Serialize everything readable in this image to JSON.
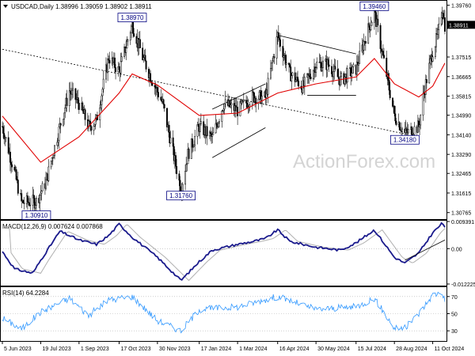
{
  "header": {
    "symbol_line": "USDCAD,Daily  1.38996 1.39059 1.38902 1.38911"
  },
  "watermark": "ActionForex.com",
  "colors": {
    "candle": "#000000",
    "ma": "#e00000",
    "macd_line": "#1a1a8c",
    "macd_signal": "#b0b0b0",
    "rsi_line": "#3399ff",
    "frame": "#000000",
    "grid_dot": "#b0b0b0",
    "label_bg": "#ffffff",
    "label_border": "#000080",
    "price_tag_bg": "#000000",
    "price_tag_text": "#ffffff"
  },
  "price_panel": {
    "y_ticks": [
      "1.39760",
      "1.38911",
      "1.37515",
      "1.36665",
      "1.35815",
      "1.34990",
      "1.34140",
      "1.33290",
      "1.32465",
      "1.31615",
      "1.30765"
    ],
    "current_price": "1.38911",
    "annotations": [
      "1.38970",
      "1.39460",
      "1.34180",
      "1.31760",
      "1.30910"
    ]
  },
  "macd_panel": {
    "label": "MACD(12,26,9) 0.007624 0.007868",
    "y_ticks": [
      "0.009391",
      "0.00",
      "-0.012225"
    ]
  },
  "rsi_panel": {
    "label": "RSI(14) 64.2284",
    "y_ticks": [
      "70",
      "50",
      "30"
    ]
  },
  "x_ticks": [
    "5 Jun 2023",
    "19 Jul 2023",
    "1 Sep 2023",
    "17 Oct 2023",
    "30 Nov 2023",
    "17 Jan 2024",
    "1 Mar 2024",
    "16 Apr 2024",
    "30 May 2024",
    "15 Jul 2024",
    "28 Aug 2024",
    "11 Oct 2024"
  ],
  "chart_data": {
    "type": "candlestick",
    "title": "USDCAD,Daily",
    "x_range": [
      "5 Jun 2023",
      "25 Oct 2024"
    ],
    "y_range": [
      1.3055,
      1.3985
    ],
    "ohlc_last": {
      "open": 1.38996,
      "high": 1.39059,
      "low": 1.38902,
      "close": 1.38911
    },
    "close_path": [
      {
        "x": "5 Jun 2023",
        "close": 1.345
      },
      {
        "x": "19 Jun 2023",
        "close": 1.325
      },
      {
        "x": "27 Jun 2023",
        "close": 1.312
      },
      {
        "x": "14 Jul 2023",
        "close": 1.3125
      },
      {
        "x": "25 Jul 2023",
        "close": 1.321
      },
      {
        "x": "10 Aug 2023",
        "close": 1.345
      },
      {
        "x": "21 Aug 2023",
        "close": 1.3605
      },
      {
        "x": "1 Sep 2023",
        "close": 1.355
      },
      {
        "x": "12 Sep 2023",
        "close": 1.345
      },
      {
        "x": "21 Sep 2023",
        "close": 1.3475
      },
      {
        "x": "5 Oct 2023",
        "close": 1.375
      },
      {
        "x": "17 Oct 2023",
        "close": 1.369
      },
      {
        "x": "1 Nov 2023",
        "close": 1.3895
      },
      {
        "x": "13 Nov 2023",
        "close": 1.375
      },
      {
        "x": "23 Nov 2023",
        "close": 1.366
      },
      {
        "x": "6 Dec 2023",
        "close": 1.355
      },
      {
        "x": "20 Dec 2023",
        "close": 1.33
      },
      {
        "x": "27 Dec 2023",
        "close": 1.3176
      },
      {
        "x": "4 Jan 2024",
        "close": 1.333
      },
      {
        "x": "17 Jan 2024",
        "close": 1.345
      },
      {
        "x": "1 Feb 2024",
        "close": 1.34
      },
      {
        "x": "14 Feb 2024",
        "close": 1.355
      },
      {
        "x": "1 Mar 2024",
        "close": 1.352
      },
      {
        "x": "19 Mar 2024",
        "close": 1.358
      },
      {
        "x": "2 Apr 2024",
        "close": 1.3575
      },
      {
        "x": "16 Apr 2024",
        "close": 1.3846
      },
      {
        "x": "30 Apr 2024",
        "close": 1.368
      },
      {
        "x": "15 May 2024",
        "close": 1.3621
      },
      {
        "x": "30 May 2024",
        "close": 1.372
      },
      {
        "x": "13 Jun 2024",
        "close": 1.372
      },
      {
        "x": "27 Jun 2024",
        "close": 1.365
      },
      {
        "x": "15 Jul 2024",
        "close": 1.37
      },
      {
        "x": "26 Jul 2024",
        "close": 1.384
      },
      {
        "x": "5 Aug 2024",
        "close": 1.3946
      },
      {
        "x": "15 Aug 2024",
        "close": 1.375
      },
      {
        "x": "28 Aug 2024",
        "close": 1.35
      },
      {
        "x": "9 Sep 2024",
        "close": 1.3418
      },
      {
        "x": "25 Sep 2024",
        "close": 1.345
      },
      {
        "x": "1 Oct 2024",
        "close": 1.36
      },
      {
        "x": "11 Oct 2024",
        "close": 1.378
      },
      {
        "x": "17 Oct 2024",
        "close": 1.3845
      },
      {
        "x": "22 Oct 2024",
        "close": 1.3965
      },
      {
        "x": "25 Oct 2024",
        "close": 1.3891
      }
    ],
    "moving_average_path": [
      {
        "x": "5 Jun 2023",
        "value": 1.3495
      },
      {
        "x": "19 Jul 2023",
        "value": 1.3295
      },
      {
        "x": "1 Sep 2023",
        "value": 1.3405
      },
      {
        "x": "17 Oct 2023",
        "value": 1.3595
      },
      {
        "x": "1 Nov 2023",
        "value": 1.3678
      },
      {
        "x": "30 Nov 2023",
        "value": 1.363
      },
      {
        "x": "17 Jan 2024",
        "value": 1.3498
      },
      {
        "x": "1 Mar 2024",
        "value": 1.3508
      },
      {
        "x": "16 Apr 2024",
        "value": 1.3595
      },
      {
        "x": "30 May 2024",
        "value": 1.3635
      },
      {
        "x": "15 Jul 2024",
        "value": 1.3665
      },
      {
        "x": "5 Aug 2024",
        "value": 1.3745
      },
      {
        "x": "28 Aug 2024",
        "value": 1.3635
      },
      {
        "x": "25 Sep 2024",
        "value": 1.3578
      },
      {
        "x": "11 Oct 2024",
        "value": 1.3625
      },
      {
        "x": "25 Oct 2024",
        "value": 1.3725
      }
    ],
    "annotated_levels": [
      {
        "label": "1.38970",
        "x": "1 Nov 2023",
        "value": 1.3897
      },
      {
        "label": "1.39460",
        "x": "5 Aug 2024",
        "value": 1.3946
      },
      {
        "label": "1.34180",
        "x": "9 Sep 2024",
        "value": 1.3418
      },
      {
        "label": "1.31760",
        "x": "27 Dec 2023",
        "value": 1.3176
      },
      {
        "label": "1.30910",
        "x": "14 Jul 2023",
        "value": 1.3091
      }
    ],
    "trendlines": [
      {
        "style": "dotted",
        "from": {
          "x": "5 Jun 2023",
          "value": 1.3785
        },
        "to": {
          "x": "9 Sep 2024",
          "value": 1.3418
        }
      },
      {
        "style": "solid",
        "from": {
          "x": "1 Feb 2024",
          "value": 1.3315
        },
        "to": {
          "x": "2 Apr 2024",
          "value": 1.3445
        }
      },
      {
        "style": "solid",
        "from": {
          "x": "1 Feb 2024",
          "value": 1.3525
        },
        "to": {
          "x": "2 Apr 2024",
          "value": 1.3635
        }
      },
      {
        "style": "solid",
        "from": {
          "x": "16 Apr 2024",
          "value": 1.3846
        },
        "to": {
          "x": "15 Jul 2024",
          "value": 1.3765
        }
      },
      {
        "style": "solid",
        "from": {
          "x": "20 May 2024",
          "value": 1.3585
        },
        "to": {
          "x": "15 Jul 2024",
          "value": 1.3585
        }
      }
    ],
    "macd": {
      "params": "12,26,9",
      "macd": 0.007624,
      "signal": 0.007868,
      "y_range": [
        -0.012225,
        0.009391
      ],
      "path": [
        {
          "x": "5 Jun 2023",
          "value": -0.001
        },
        {
          "x": "19 Jun 2023",
          "value": -0.007
        },
        {
          "x": "10 Jul 2023",
          "value": -0.0085
        },
        {
          "x": "19 Jul 2023",
          "value": -0.004
        },
        {
          "x": "10 Aug 2023",
          "value": 0.006
        },
        {
          "x": "1 Sep 2023",
          "value": 0.003
        },
        {
          "x": "21 Sep 2023",
          "value": 0.0015
        },
        {
          "x": "5 Oct 2023",
          "value": 0.0045
        },
        {
          "x": "17 Oct 2023",
          "value": 0.0085
        },
        {
          "x": "1 Nov 2023",
          "value": 0.004
        },
        {
          "x": "30 Nov 2023",
          "value": -0.003
        },
        {
          "x": "27 Dec 2023",
          "value": -0.011
        },
        {
          "x": "17 Jan 2024",
          "value": -0.0045
        },
        {
          "x": "1 Feb 2024",
          "value": -0.0005
        },
        {
          "x": "1 Mar 2024",
          "value": 0.0015
        },
        {
          "x": "19 Mar 2024",
          "value": 0.0025
        },
        {
          "x": "2 Apr 2024",
          "value": 0.0035
        },
        {
          "x": "16 Apr 2024",
          "value": 0.0065
        },
        {
          "x": "30 Apr 2024",
          "value": 0.0025
        },
        {
          "x": "15 May 2024",
          "value": 0.0015
        },
        {
          "x": "30 May 2024",
          "value": 0.0005
        },
        {
          "x": "27 Jun 2024",
          "value": -0.0005
        },
        {
          "x": "15 Jul 2024",
          "value": 0.002
        },
        {
          "x": "5 Aug 2024",
          "value": 0.0065
        },
        {
          "x": "28 Aug 2024",
          "value": -0.003
        },
        {
          "x": "9 Sep 2024",
          "value": -0.005
        },
        {
          "x": "25 Sep 2024",
          "value": -0.0015
        },
        {
          "x": "11 Oct 2024",
          "value": 0.0055
        },
        {
          "x": "22 Oct 2024",
          "value": 0.0088
        },
        {
          "x": "25 Oct 2024",
          "value": 0.0076
        }
      ],
      "support_line": {
        "from": {
          "x": "9 Sep 2024",
          "value": -0.004
        },
        "to": {
          "x": "25 Oct 2024",
          "value": 0.003
        }
      }
    },
    "rsi": {
      "period": 14,
      "value": 64.2284,
      "y_range": [
        20,
        80
      ],
      "levels": [
        70,
        50,
        30
      ],
      "path": [
        {
          "x": "5 Jun 2023",
          "value": 45
        },
        {
          "x": "27 Jun 2023",
          "value": 32
        },
        {
          "x": "19 Jul 2023",
          "value": 52
        },
        {
          "x": "21 Aug 2023",
          "value": 68
        },
        {
          "x": "12 Sep 2023",
          "value": 48
        },
        {
          "x": "5 Oct 2023",
          "value": 66
        },
        {
          "x": "1 Nov 2023",
          "value": 70
        },
        {
          "x": "30 Nov 2023",
          "value": 42
        },
        {
          "x": "27 Dec 2023",
          "value": 30
        },
        {
          "x": "17 Jan 2024",
          "value": 55
        },
        {
          "x": "1 Mar 2024",
          "value": 58
        },
        {
          "x": "16 Apr 2024",
          "value": 70
        },
        {
          "x": "30 May 2024",
          "value": 55
        },
        {
          "x": "15 Jul 2024",
          "value": 58
        },
        {
          "x": "5 Aug 2024",
          "value": 68
        },
        {
          "x": "28 Aug 2024",
          "value": 33
        },
        {
          "x": "9 Sep 2024",
          "value": 33
        },
        {
          "x": "25 Sep 2024",
          "value": 50
        },
        {
          "x": "11 Oct 2024",
          "value": 72
        },
        {
          "x": "22 Oct 2024",
          "value": 75
        },
        {
          "x": "25 Oct 2024",
          "value": 64.2284
        }
      ]
    }
  }
}
